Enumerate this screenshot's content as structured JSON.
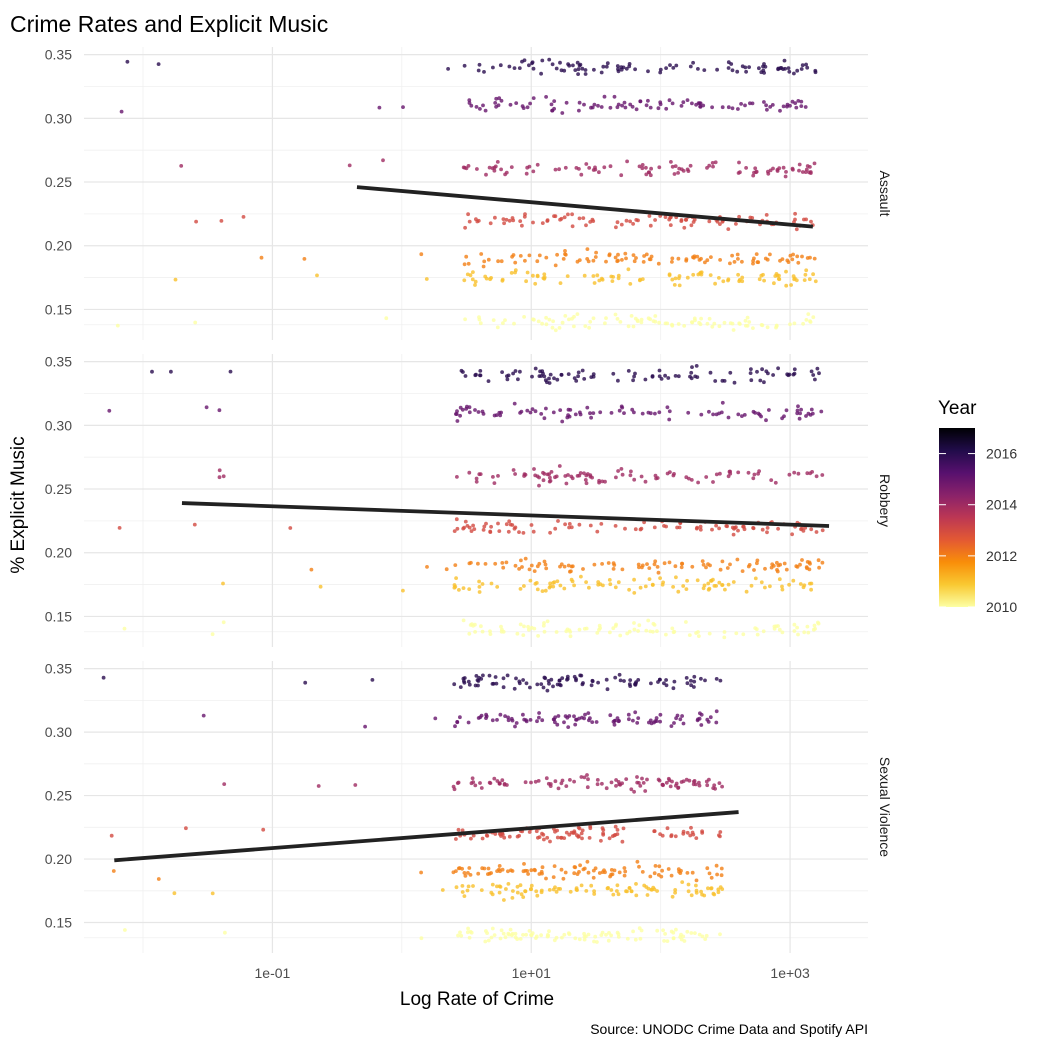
{
  "chart_data": {
    "type": "scatter",
    "title": "Crime Rates and Explicit Music",
    "xlabel": "Log Rate of Crime",
    "ylabel": "% Explicit Music",
    "caption": "Source: UNODC Crime Data and Spotify API",
    "x_scale": "log10",
    "xlim": [
      0.0035,
      4000
    ],
    "ylim": [
      0.126,
      0.356
    ],
    "x_ticks": [
      0.1,
      10,
      1000
    ],
    "x_tick_labels": [
      "1e-01",
      "1e+01",
      "1e+03"
    ],
    "y_ticks": [
      0.15,
      0.2,
      0.25,
      0.3,
      0.35
    ],
    "y_tick_labels": [
      "0.15",
      "0.20",
      "0.25",
      "0.30",
      "0.35"
    ],
    "grid": true,
    "legend": {
      "title": "Year",
      "position": "right",
      "type": "colorbar",
      "range": [
        2010,
        2017
      ],
      "breaks": [
        2016,
        2014,
        2012,
        2010
      ],
      "break_labels": [
        "2016",
        "2014",
        "2012",
        "2010"
      ],
      "colormap": "inferno-reversed",
      "color_stops": [
        "#fcffa4",
        "#f9c932",
        "#f98e09",
        "#e35933",
        "#bc3754",
        "#8a226a",
        "#57106e",
        "#210c4a",
        "#000004"
      ]
    },
    "year_levels": [
      {
        "year": 2010,
        "y": 0.14
      },
      {
        "year": 2011,
        "y": 0.175
      },
      {
        "year": 2012,
        "y": 0.19
      },
      {
        "year": 2013,
        "y": 0.22
      },
      {
        "year": 2014,
        "y": 0.26
      },
      {
        "year": 2015,
        "y": 0.31
      },
      {
        "year": 2016,
        "y": 0.34
      }
    ],
    "facets": [
      {
        "name": "Assault",
        "trend": {
          "x": [
            0.45,
            1500
          ],
          "y": [
            0.246,
            0.215
          ]
        },
        "x_range": [
          3,
          1600
        ]
      },
      {
        "name": "Robbery",
        "trend": {
          "x": [
            0.02,
            2000
          ],
          "y": [
            0.239,
            0.221
          ]
        },
        "x_range": [
          2.5,
          1800
        ]
      },
      {
        "name": "Sexual Violence",
        "trend": {
          "x": [
            0.006,
            400
          ],
          "y": [
            0.199,
            0.237
          ]
        },
        "x_range": [
          2.5,
          300
        ]
      }
    ]
  }
}
